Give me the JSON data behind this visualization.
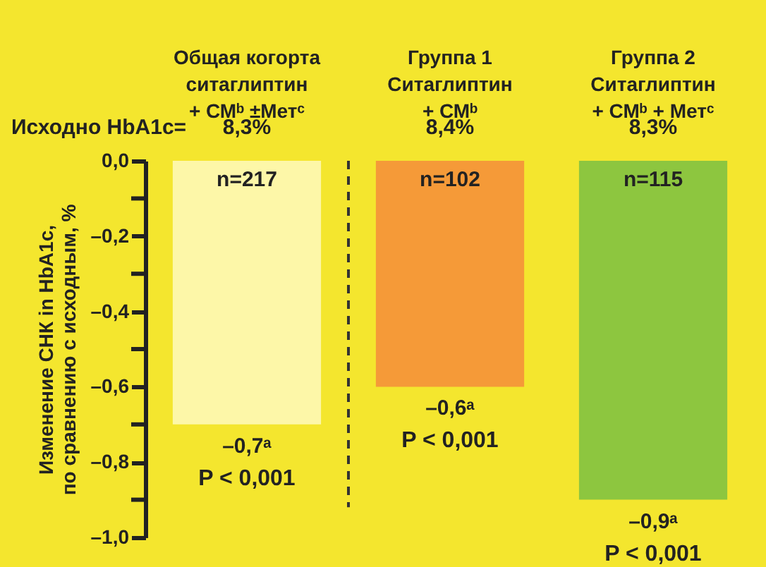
{
  "chart_data": {
    "type": "bar",
    "categories": [
      "Общая когорта\nситаглиптин\n+ СМᵇ ±Метᶜ",
      "Группа 1\nСитаглиптин\n+ СМᵇ",
      "Группа 2\nСитаглиптин\n+ СМᵇ + Метᶜ"
    ],
    "values": [
      -0.7,
      -0.6,
      -0.9
    ],
    "colors": [
      "#fdf7a8",
      "#f59a38",
      "#8dc63f"
    ],
    "value_labels": [
      "–0,7ᵃ",
      "–0,6ᵃ",
      "–0,9ᵃ"
    ],
    "ylabel": "Изменение СНК in HbA1c,\nпо сравнению с исходным, %",
    "ylim": [
      -1.0,
      0.0
    ],
    "yticks": [
      {
        "value": 0.0,
        "label": "0,0"
      },
      {
        "value": -0.1,
        "label": null
      },
      {
        "value": -0.2,
        "label": "–0,2"
      },
      {
        "value": -0.3,
        "label": null
      },
      {
        "value": -0.4,
        "label": "–0,4"
      },
      {
        "value": -0.5,
        "label": null
      },
      {
        "value": -0.6,
        "label": "–0,6"
      },
      {
        "value": -0.7,
        "label": null
      },
      {
        "value": -0.8,
        "label": "–0,8"
      },
      {
        "value": -0.9,
        "label": null
      },
      {
        "value": -1.0,
        "label": "–1,0"
      }
    ],
    "grid": false,
    "annotations": [
      "Исходно HbA1c=",
      "8,3%",
      "8,4%",
      "8,3%",
      {
        "text": "n=217",
        "x": "Общая когорта\nситаглиптин\n+ СМᵇ ±Метᶜ",
        "y": 0.0
      },
      {
        "text": "n=102",
        "x": "Группа 1\nСитаглиптин\n+ СМᵇ",
        "y": 0.0
      },
      {
        "text": "n=115",
        "x": "Группа 2\nСитаглиптин\n+ СМᵇ + Метᶜ",
        "y": 0.0
      },
      {
        "text": "P < 0,001",
        "x": "Общая когорта\nситаглиптин\n+ СМᵇ ±Метᶜ",
        "y": -0.7
      },
      {
        "text": "P < 0,001",
        "x": "Группа 1\nСитаглиптин\n+ СМᵇ",
        "y": -0.6
      },
      {
        "text": "P < 0,001",
        "x": "Группа 2\nСитаглиптин\n+ СМᵇ + Метᶜ",
        "y": -0.9
      }
    ]
  }
}
